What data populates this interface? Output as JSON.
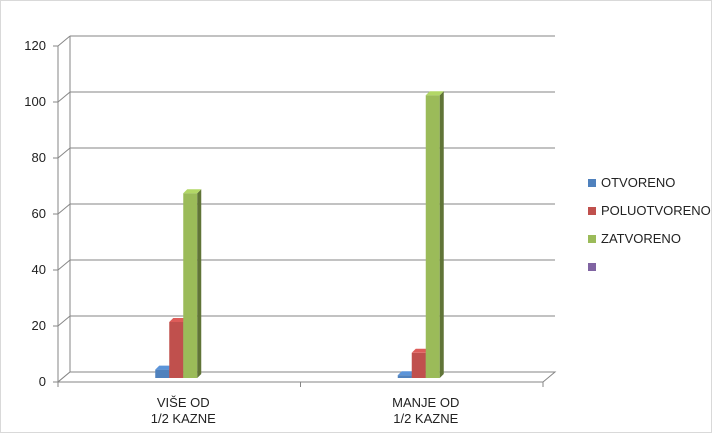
{
  "chart_data": {
    "type": "bar",
    "title": "",
    "xlabel": "",
    "ylabel": "",
    "ylim": [
      0,
      120
    ],
    "yticks": [
      0,
      20,
      40,
      60,
      80,
      100,
      120
    ],
    "categories": [
      [
        "VIŠE OD",
        "1/2 KAZNE"
      ],
      [
        "MANJE OD",
        "1/2 KAZNE"
      ]
    ],
    "series": [
      {
        "name": "OTVORENO",
        "color": "#4f81bd",
        "values": [
          3,
          1
        ]
      },
      {
        "name": "POLUOTVORENO",
        "color": "#c0504d",
        "values": [
          20,
          9
        ]
      },
      {
        "name": "ZATVORENO",
        "color": "#9bbb59",
        "values": [
          66,
          101
        ]
      },
      {
        "name": "",
        "color": "#8064a2",
        "values": [
          0,
          0
        ]
      }
    ],
    "grid": true,
    "legend": "right",
    "style": "3d-column"
  }
}
